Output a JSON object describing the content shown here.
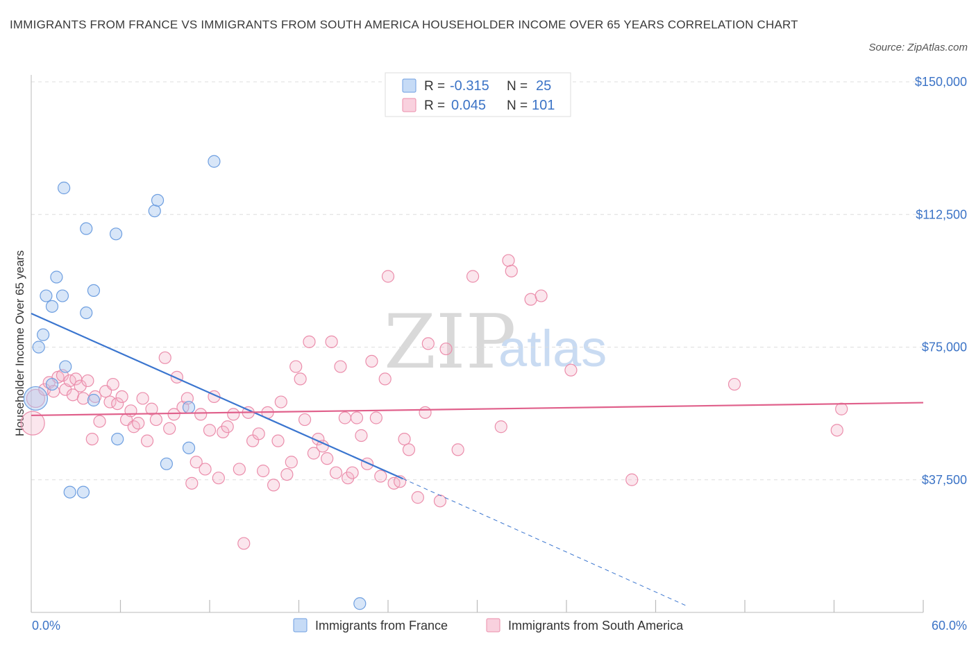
{
  "title": "IMMIGRANTS FROM FRANCE VS IMMIGRANTS FROM SOUTH AMERICA HOUSEHOLDER INCOME OVER 65 YEARS CORRELATION CHART",
  "source": "Source: ZipAtlas.com",
  "watermark": {
    "zip": "ZIP",
    "atlas": "atlas"
  },
  "legend_box": {
    "rows": [
      {
        "r_label": "R =",
        "r_value": "-0.315",
        "n_label": "N =",
        "n_value": "25",
        "color": "#a9c8f0"
      },
      {
        "r_label": "R =",
        "r_value": "0.045",
        "n_label": "N =",
        "n_value": "101",
        "color": "#f4b8cc"
      }
    ]
  },
  "bottom_legend": [
    "Immigrants from France",
    "Immigrants from South America"
  ],
  "colors": {
    "france_fill": "rgba(169,200,240,0.45)",
    "france_stroke": "#6d9ee0",
    "france_line": "#3a75cf",
    "sa_fill": "rgba(244,184,204,0.35)",
    "sa_stroke": "#eb8dab",
    "sa_line": "#e0608b",
    "axis_text": "#3b73c6",
    "grid": "#dddddd"
  },
  "chart_data": {
    "type": "scatter",
    "ylabel": "Householder Income Over 65 years",
    "xlim": [
      0,
      60
    ],
    "ylim": [
      0,
      150000
    ],
    "x_tick_labels": [
      "0.0%",
      "60.0%"
    ],
    "y_ticks": [
      37500,
      75000,
      112500,
      150000
    ],
    "y_tick_labels": [
      "$37,500",
      "$75,000",
      "$112,500",
      "$150,000"
    ],
    "grid": "horizontal dashed",
    "series": [
      {
        "name": "Immigrants from France",
        "r": -0.315,
        "n": 25,
        "trend": {
          "x": [
            0,
            25
          ],
          "y": [
            84500,
            37800
          ],
          "dashed_extension_to": [
            44,
            2000
          ]
        },
        "points": [
          [
            0.3,
            60500,
            3
          ],
          [
            0.5,
            75000,
            1
          ],
          [
            0.8,
            78500,
            1
          ],
          [
            1.0,
            89500,
            1
          ],
          [
            1.4,
            86500,
            1
          ],
          [
            1.7,
            94800,
            1
          ],
          [
            2.2,
            120000,
            1
          ],
          [
            2.3,
            69500,
            1
          ],
          [
            3.7,
            108500,
            1
          ],
          [
            2.6,
            34000,
            1
          ],
          [
            3.5,
            34000,
            1
          ],
          [
            4.2,
            60000,
            1
          ],
          [
            4.2,
            91000,
            1
          ],
          [
            2.1,
            89500,
            1
          ],
          [
            3.7,
            84700,
            1
          ],
          [
            5.8,
            49000,
            1
          ],
          [
            5.7,
            107000,
            1
          ],
          [
            8.3,
            113500,
            1
          ],
          [
            8.5,
            116500,
            1
          ],
          [
            9.1,
            42000,
            1
          ],
          [
            10.6,
            46500,
            1
          ],
          [
            10.6,
            58000,
            1
          ],
          [
            12.3,
            127500,
            1
          ],
          [
            22.1,
            2500,
            1
          ],
          [
            1.4,
            64500,
            1
          ]
        ]
      },
      {
        "name": "Immigrants from South America",
        "r": 0.045,
        "n": 101,
        "trend": {
          "x": [
            0,
            60
          ],
          "y": [
            55700,
            59300
          ]
        },
        "points": [
          [
            0.1,
            53500,
            3
          ],
          [
            0.3,
            60500,
            2
          ],
          [
            0.9,
            63000,
            1
          ],
          [
            1.2,
            65000,
            1
          ],
          [
            1.5,
            62500,
            1
          ],
          [
            1.8,
            66500,
            1
          ],
          [
            2.1,
            67000,
            1
          ],
          [
            2.3,
            63000,
            1
          ],
          [
            2.6,
            65500,
            1
          ],
          [
            2.8,
            61500,
            1
          ],
          [
            3.0,
            66000,
            1
          ],
          [
            3.3,
            64000,
            1
          ],
          [
            3.5,
            60500,
            1
          ],
          [
            3.8,
            65500,
            1
          ],
          [
            4.1,
            49000,
            1
          ],
          [
            4.3,
            61000,
            1
          ],
          [
            4.6,
            54000,
            1
          ],
          [
            5.0,
            62500,
            1
          ],
          [
            5.3,
            59500,
            1
          ],
          [
            5.5,
            64500,
            1
          ],
          [
            5.8,
            59000,
            1
          ],
          [
            6.1,
            61000,
            1
          ],
          [
            6.4,
            54500,
            1
          ],
          [
            6.7,
            57000,
            1
          ],
          [
            6.9,
            52500,
            1
          ],
          [
            7.2,
            53500,
            1
          ],
          [
            7.5,
            60500,
            1
          ],
          [
            7.8,
            48500,
            1
          ],
          [
            8.1,
            57500,
            1
          ],
          [
            8.4,
            54500,
            1
          ],
          [
            9.0,
            72000,
            1
          ],
          [
            9.3,
            52000,
            1
          ],
          [
            9.6,
            56000,
            1
          ],
          [
            9.8,
            66500,
            1
          ],
          [
            10.2,
            58000,
            1
          ],
          [
            10.5,
            60500,
            1
          ],
          [
            10.8,
            36500,
            1
          ],
          [
            11.1,
            42500,
            1
          ],
          [
            11.4,
            56000,
            1
          ],
          [
            11.7,
            40500,
            1
          ],
          [
            12.0,
            51500,
            1
          ],
          [
            12.3,
            61000,
            1
          ],
          [
            12.6,
            38000,
            1
          ],
          [
            12.9,
            51000,
            1
          ],
          [
            13.2,
            52500,
            1
          ],
          [
            13.6,
            56000,
            1
          ],
          [
            14.0,
            40500,
            1
          ],
          [
            14.3,
            19500,
            1
          ],
          [
            14.6,
            56500,
            1
          ],
          [
            14.9,
            48500,
            1
          ],
          [
            15.3,
            50500,
            1
          ],
          [
            15.6,
            40000,
            1
          ],
          [
            15.9,
            56500,
            1
          ],
          [
            16.3,
            36000,
            1
          ],
          [
            16.6,
            48500,
            1
          ],
          [
            16.8,
            59500,
            1
          ],
          [
            17.2,
            39000,
            1
          ],
          [
            17.5,
            42500,
            1
          ],
          [
            17.8,
            69500,
            1
          ],
          [
            18.1,
            66000,
            1
          ],
          [
            18.4,
            54500,
            1
          ],
          [
            18.7,
            76500,
            1
          ],
          [
            19.0,
            45000,
            1
          ],
          [
            19.3,
            49000,
            1
          ],
          [
            19.6,
            47000,
            1
          ],
          [
            19.9,
            43500,
            1
          ],
          [
            20.2,
            76500,
            1
          ],
          [
            20.5,
            39500,
            1
          ],
          [
            20.8,
            69500,
            1
          ],
          [
            21.1,
            55000,
            1
          ],
          [
            21.3,
            38000,
            1
          ],
          [
            21.6,
            39500,
            1
          ],
          [
            21.9,
            55000,
            1
          ],
          [
            22.2,
            50000,
            1
          ],
          [
            22.6,
            42000,
            1
          ],
          [
            22.9,
            71000,
            1
          ],
          [
            23.2,
            55000,
            1
          ],
          [
            23.5,
            38500,
            1
          ],
          [
            23.8,
            66000,
            1
          ],
          [
            24.0,
            95000,
            1
          ],
          [
            24.4,
            36500,
            1
          ],
          [
            24.8,
            37000,
            1
          ],
          [
            25.1,
            49000,
            1
          ],
          [
            25.4,
            46000,
            1
          ],
          [
            26.0,
            32500,
            1
          ],
          [
            26.5,
            56500,
            1
          ],
          [
            26.7,
            76000,
            1
          ],
          [
            27.5,
            31500,
            1
          ],
          [
            27.9,
            74500,
            1
          ],
          [
            28.7,
            46000,
            1
          ],
          [
            29.7,
            95000,
            1
          ],
          [
            31.6,
            52500,
            1
          ],
          [
            32.1,
            99500,
            1
          ],
          [
            32.3,
            96500,
            1
          ],
          [
            33.6,
            88500,
            1
          ],
          [
            34.3,
            89500,
            1
          ],
          [
            36.3,
            68500,
            1
          ],
          [
            40.4,
            37500,
            1
          ],
          [
            47.3,
            64500,
            1
          ],
          [
            54.2,
            51500,
            1
          ],
          [
            54.5,
            57500,
            1
          ]
        ]
      }
    ]
  }
}
